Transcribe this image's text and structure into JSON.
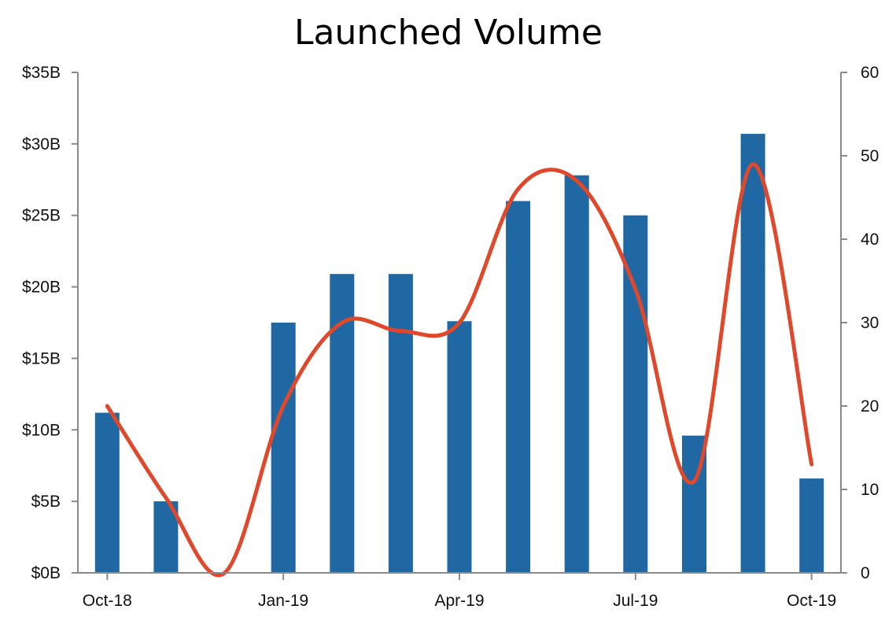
{
  "chart_data": {
    "type": "bar",
    "title": "Launched Volume",
    "x": [
      "2018-10",
      "2018-11",
      "2018-12",
      "2019-01",
      "2019-02",
      "2019-03",
      "2019-04",
      "2019-05",
      "2019-06",
      "2019-07",
      "2019-08",
      "2019-09",
      "2019-10"
    ],
    "x_tick_labels": [
      "Oct-18",
      "Jan-19",
      "Apr-19",
      "Jul-19",
      "Oct-19"
    ],
    "y_tick_labels": [
      "$0B",
      "$5B",
      "$10B",
      "$15B",
      "$20B",
      "$25B",
      "$30B",
      "$35B"
    ],
    "y2_tick_labels": [
      "0",
      "10",
      "20",
      "30",
      "40",
      "50",
      "60"
    ],
    "ylim": [
      0,
      35
    ],
    "y2lim": [
      0,
      60
    ],
    "grid": false,
    "legend": "none",
    "series": [
      {
        "type": "bar",
        "axis": "left",
        "color": "#1f68a3",
        "values": [
          11.2,
          5.0,
          0,
          17.5,
          20.9,
          20.9,
          17.6,
          26.0,
          27.8,
          25.0,
          9.6,
          30.7,
          6.6
        ]
      },
      {
        "type": "line",
        "axis": "right",
        "color": "#e0482b",
        "smooth": true,
        "values": [
          20,
          9,
          0,
          20,
          30,
          29,
          30,
          46,
          47,
          34,
          11,
          49,
          13
        ]
      }
    ]
  }
}
